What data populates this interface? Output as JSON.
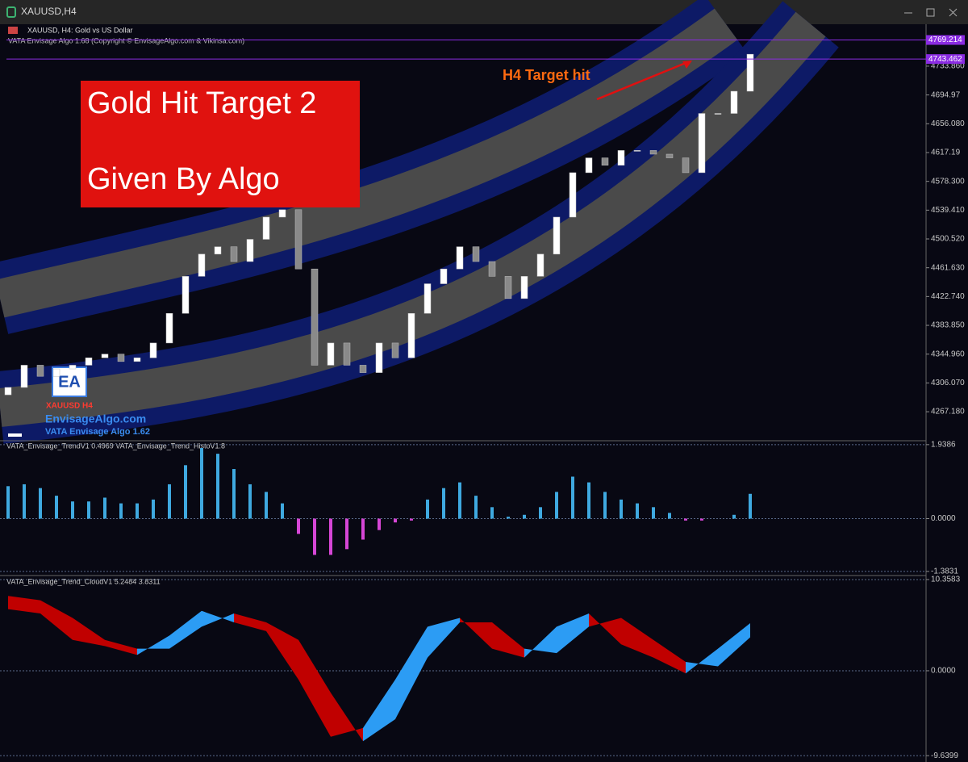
{
  "window": {
    "title": "XAUUSD,H4"
  },
  "chart_data": [
    {
      "type": "candlestick",
      "title": "XAUUSD, H4:  Gold vs US Dollar",
      "subtitle": "VATA Envisage Algo 1.68 (Copyright © EnvisageAlgo.com & Vikinsa.com)",
      "open": [
        4290,
        4300,
        4330,
        4315,
        4325,
        4330,
        4340,
        4345,
        4335,
        4340,
        4360,
        4400,
        4450,
        4480,
        4490,
        4470,
        4500,
        4530,
        4540,
        4460,
        4330,
        4360,
        4330,
        4320,
        4360,
        4340,
        4400,
        4440,
        4460,
        4490,
        4470,
        4450,
        4420,
        4450,
        4480,
        4530,
        4590,
        4610,
        4600,
        4620,
        4620,
        4615,
        4610,
        4590,
        4670,
        4670,
        4700
      ],
      "close": [
        4300,
        4330,
        4315,
        4325,
        4330,
        4340,
        4345,
        4335,
        4340,
        4360,
        4400,
        4450,
        4480,
        4490,
        4470,
        4500,
        4530,
        4540,
        4460,
        4330,
        4360,
        4330,
        4320,
        4360,
        4340,
        4400,
        4440,
        4460,
        4490,
        4470,
        4450,
        4420,
        4450,
        4480,
        4530,
        4590,
        4610,
        4600,
        4620,
        4620,
        4615,
        4610,
        4590,
        4670,
        4670,
        4700,
        4750
      ],
      "up_color": "#ffffff",
      "down_color": "#8a8a8a",
      "ylim": [
        4229.1,
        4790.5
      ],
      "yticks": [
        {
          "value": 4733.86,
          "label": "4733.860"
        },
        4694.97,
        {
          "value": 4656.08,
          "label": "4656.080"
        },
        4617.19,
        {
          "value": 4578.3,
          "label": "4578.300"
        },
        {
          "value": 4539.41,
          "label": "4539.410"
        },
        {
          "value": 4500.52,
          "label": "4500.520"
        },
        {
          "value": 4461.63,
          "label": "4461.630"
        },
        {
          "value": 4422.74,
          "label": "4422.740"
        },
        {
          "value": 4383.85,
          "label": "4383.850"
        },
        {
          "value": 4344.96,
          "label": "4344.960"
        },
        {
          "value": 4306.07,
          "label": "4306.070"
        },
        {
          "value": 4267.18,
          "label": "4267.180"
        }
      ],
      "price_lines": [
        4769.214,
        4743.462
      ],
      "line_color": "#8a2be2",
      "annotations": [
        "Gold Hit Target 2",
        "Given By Algo",
        "H4 Target hit",
        "EA",
        "XAUUSD H4",
        "EnvisageAlgo.com",
        "VATA Envisage Algo 1.62"
      ]
    },
    {
      "type": "bar",
      "title": "VATA_Envisage_TrendV1 0.4969 VATA_Envisage_Trend_HistoV1.8",
      "values": [
        0.85,
        0.9,
        0.8,
        0.6,
        0.45,
        0.45,
        0.55,
        0.4,
        0.4,
        0.5,
        0.9,
        1.4,
        1.85,
        1.7,
        1.3,
        0.9,
        0.7,
        0.4,
        -0.4,
        -0.95,
        -0.95,
        -0.8,
        -0.55,
        -0.3,
        -0.1,
        -0.05,
        0.5,
        0.8,
        0.95,
        0.6,
        0.3,
        0.05,
        0.1,
        0.3,
        0.7,
        1.1,
        0.95,
        0.7,
        0.5,
        0.4,
        0.3,
        0.15,
        -0.05,
        -0.05,
        0.0,
        0.1,
        0.65
      ],
      "up_color": "#3fa9e0",
      "down_color": "#d646d6",
      "ylim": [
        -1.47,
        2.02
      ],
      "yticks": [
        1.9386,
        {
          "value": 0,
          "label": "0.0000"
        },
        -1.3831
      ],
      "grid": true
    },
    {
      "type": "cloud",
      "title": "VATA_Envisage_Trend_CloudV1 5.2484 3.8311",
      "series": [
        {
          "values": [
            7,
            6.5,
            3.5,
            2.8,
            1.8,
            4,
            6.8,
            5.5,
            4.5,
            -1,
            -7.5,
            -6.5,
            -1,
            5,
            6,
            2.5,
            1.5,
            5,
            6.5,
            3,
            1.5,
            -0.3,
            2.5,
            5.4
          ]
        },
        {
          "values": [
            8.5,
            8,
            6,
            3.5,
            2.5,
            2.5,
            5,
            6.5,
            5.5,
            3.5,
            -2.5,
            -8,
            -5.5,
            1.5,
            5.5,
            5.5,
            2.5,
            2,
            5,
            6,
            3.5,
            1,
            0.5,
            3.8
          ]
        }
      ],
      "up_color": "#2c9cf4",
      "down_color": "#c00000",
      "ylim": [
        -10.36,
        10.72
      ],
      "yticks": [
        10.3583,
        {
          "value": 0,
          "label": "0.0000"
        },
        -9.6399
      ],
      "grid": true
    }
  ]
}
